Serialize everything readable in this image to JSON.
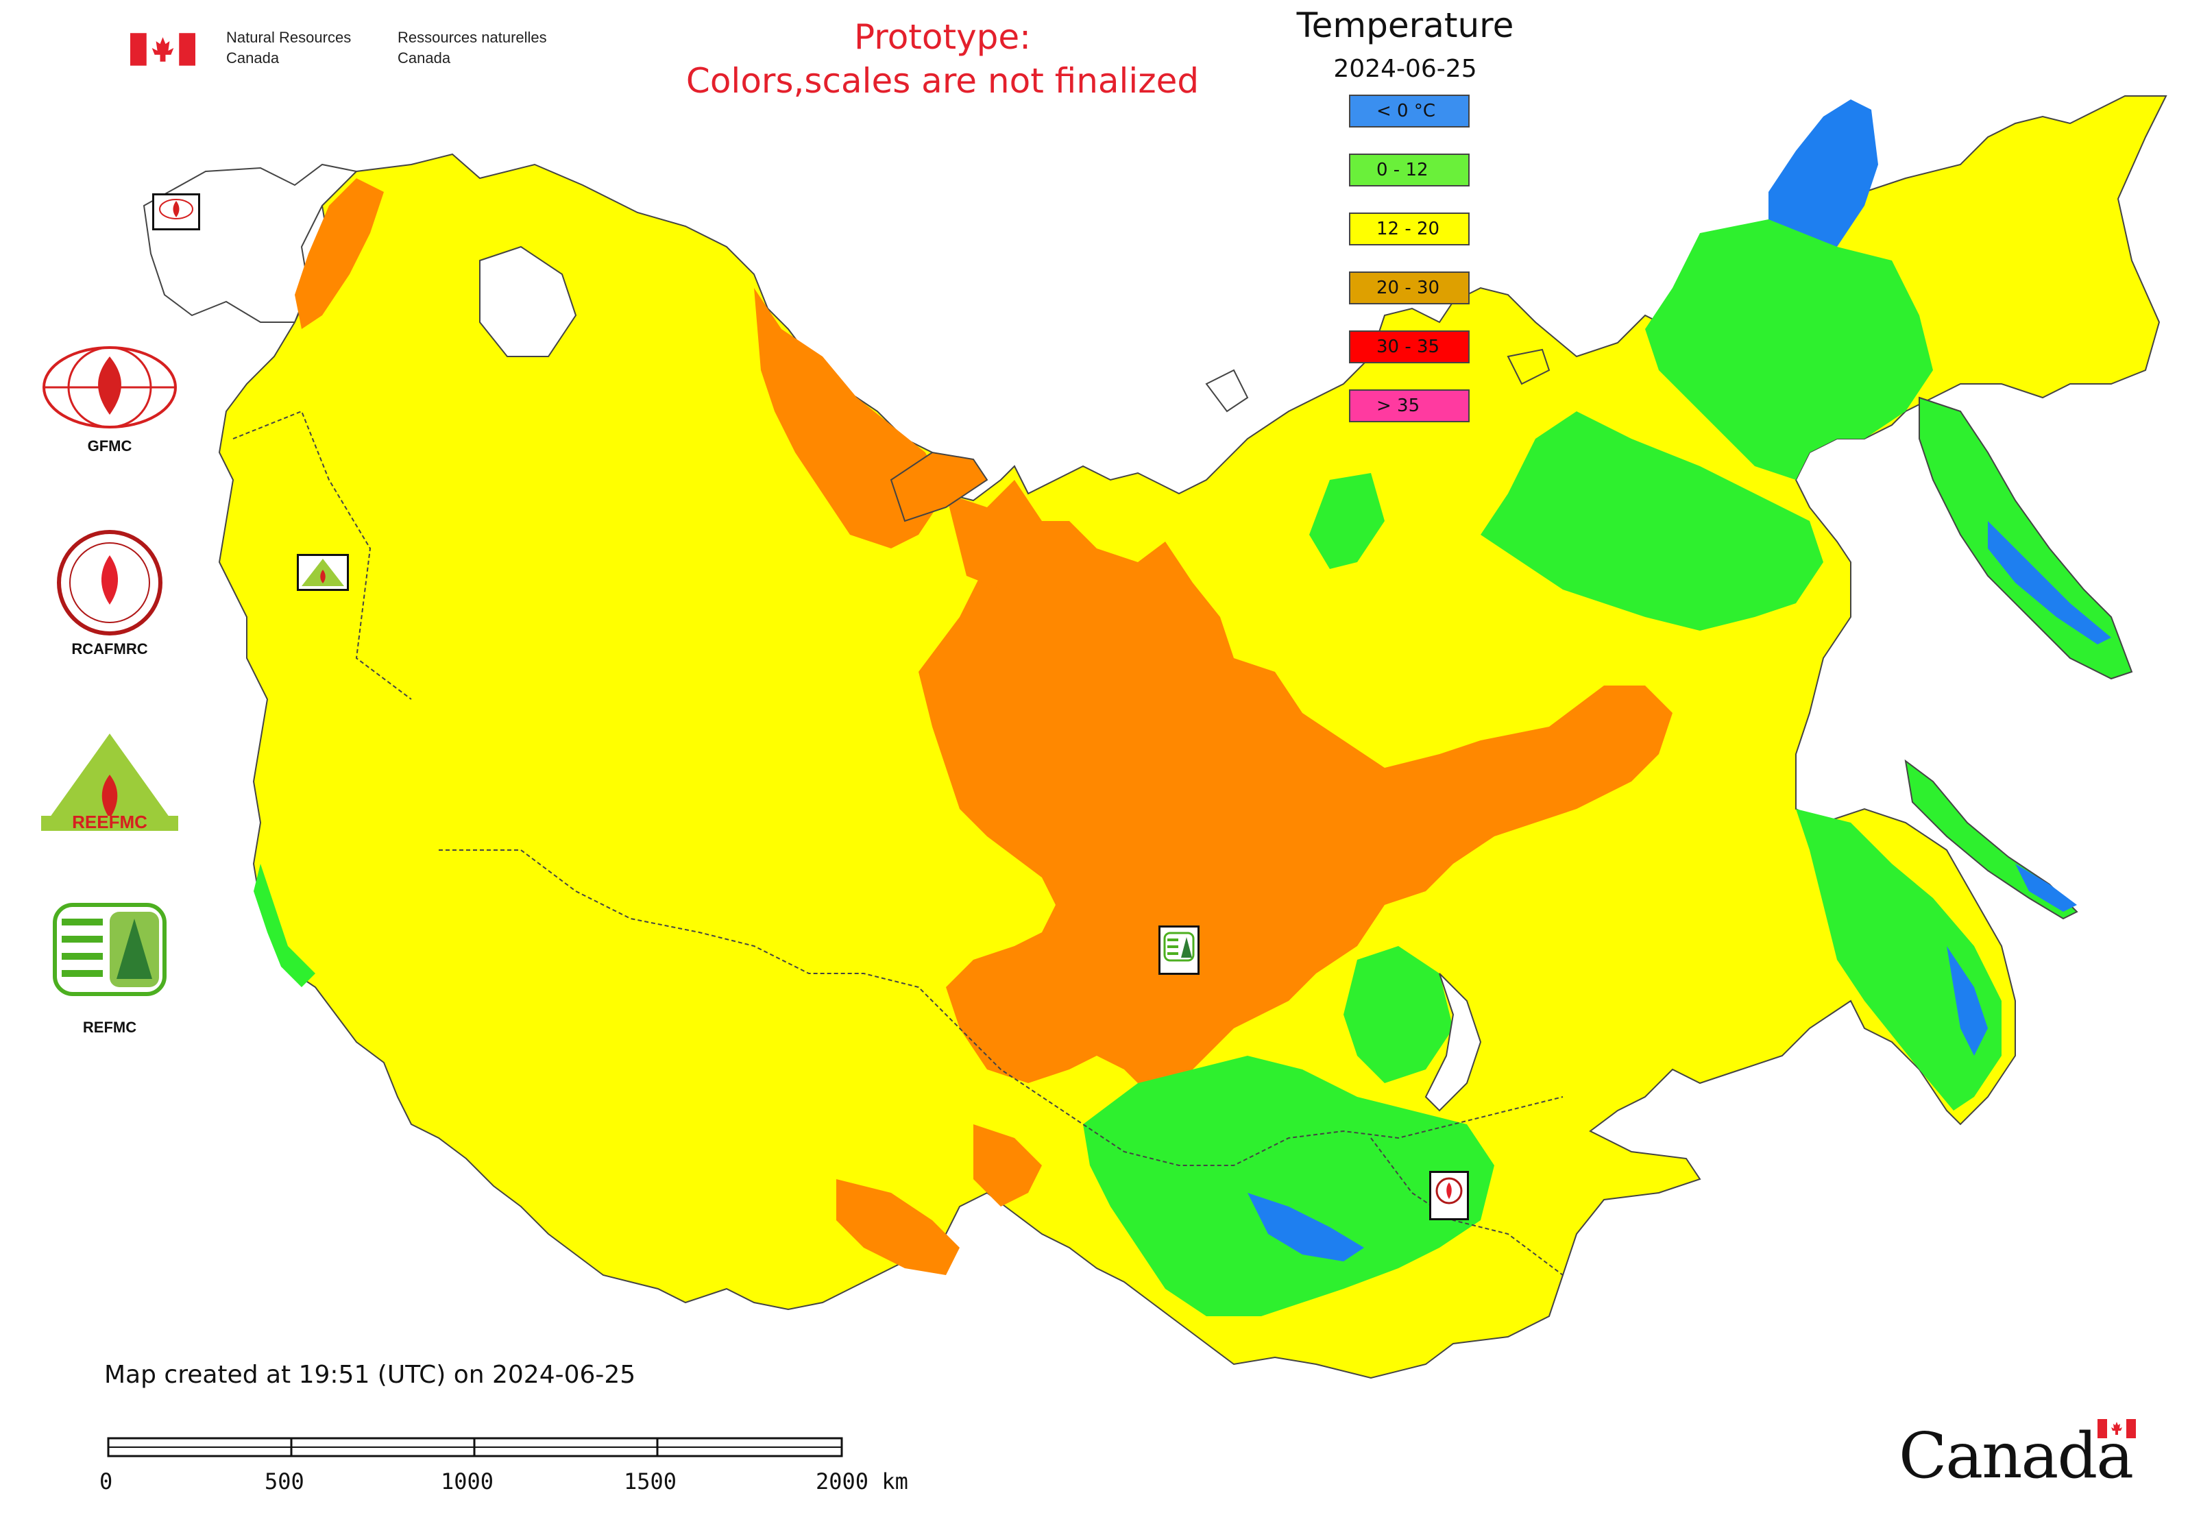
{
  "header": {
    "dept_en_line1": "Natural Resources",
    "dept_en_line2": "Canada",
    "dept_fr_line1": "Ressources naturelles",
    "dept_fr_line2": "Canada",
    "flag_icon": "canada-flag-icon"
  },
  "notice": {
    "line1": "Prototype:",
    "line2": "Colors,scales are not finalized",
    "color": "#e4202c"
  },
  "legend": {
    "title": "Temperature",
    "date": "2024-06-25",
    "items": [
      {
        "label": "< 0 °C",
        "color": "#3a8ff0"
      },
      {
        "label": "0 - 12",
        "color": "#6af03a"
      },
      {
        "label": "12 - 20",
        "color": "#ffff00"
      },
      {
        "label": "20 - 30",
        "color": "#dea000"
      },
      {
        "label": "30 - 35",
        "color": "#ff0000"
      },
      {
        "label": "> 35",
        "color": "#ff3aa0"
      }
    ]
  },
  "map_colors": {
    "cold": "#1e7ff0",
    "cool": "#2ef02e",
    "mild": "#ffff00",
    "warm": "#ff8800",
    "border": "#444444"
  },
  "logos": [
    {
      "label": "GFMC",
      "icon": "gfmc-logo-icon"
    },
    {
      "label": "RCAFMRC",
      "icon": "rcafmrc-logo-icon"
    },
    {
      "label": "REEFMC",
      "icon": "reefmc-logo-icon"
    },
    {
      "label": "REFMC",
      "icon": "refmc-logo-icon"
    }
  ],
  "map_markers": [
    {
      "label": "GFMC",
      "icon": "gfmc-marker-icon"
    },
    {
      "label": "REEFMC",
      "icon": "reefmc-marker-icon"
    },
    {
      "label": "REFMC",
      "icon": "refmc-marker-icon"
    },
    {
      "label": "RCAFMRC",
      "icon": "rcafmrc-marker-icon"
    }
  ],
  "footer": {
    "created_text": "Map created at 19:51 (UTC) on 2024-06-25",
    "scale_ticks": [
      "0",
      "500",
      "1000",
      "1500",
      "2000 km"
    ],
    "wordmark": "Canada"
  }
}
